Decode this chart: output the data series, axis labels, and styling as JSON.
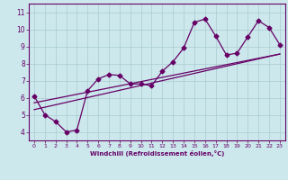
{
  "xlabel": "Windchill (Refroidissement éolien,°C)",
  "background_color": "#cce8ec",
  "line_color": "#660066",
  "xlim": [
    -0.5,
    23.5
  ],
  "ylim": [
    3.5,
    11.5
  ],
  "xticks": [
    0,
    1,
    2,
    3,
    4,
    5,
    6,
    7,
    8,
    9,
    10,
    11,
    12,
    13,
    14,
    15,
    16,
    17,
    18,
    19,
    20,
    21,
    22,
    23
  ],
  "yticks": [
    4,
    5,
    6,
    7,
    8,
    9,
    10,
    11
  ],
  "series1_x": [
    0,
    1,
    2,
    3,
    4,
    5,
    6,
    7,
    8,
    9,
    10,
    11,
    12,
    13,
    14,
    15,
    16,
    17,
    18,
    19,
    20,
    21,
    22,
    23
  ],
  "series1_y": [
    6.1,
    5.0,
    4.6,
    4.0,
    4.1,
    6.4,
    7.1,
    7.35,
    7.3,
    6.8,
    6.8,
    6.7,
    7.55,
    8.1,
    8.9,
    10.4,
    10.6,
    9.6,
    8.5,
    8.6,
    9.55,
    10.5,
    10.1,
    9.1
  ],
  "series2_x": [
    0,
    23
  ],
  "series2_y": [
    5.3,
    8.55
  ],
  "series3_x": [
    0,
    23
  ],
  "series3_y": [
    5.7,
    8.55
  ],
  "grid_color": "#aaccd0",
  "marker": "D",
  "markersize": 2.5,
  "linewidth": 0.9
}
